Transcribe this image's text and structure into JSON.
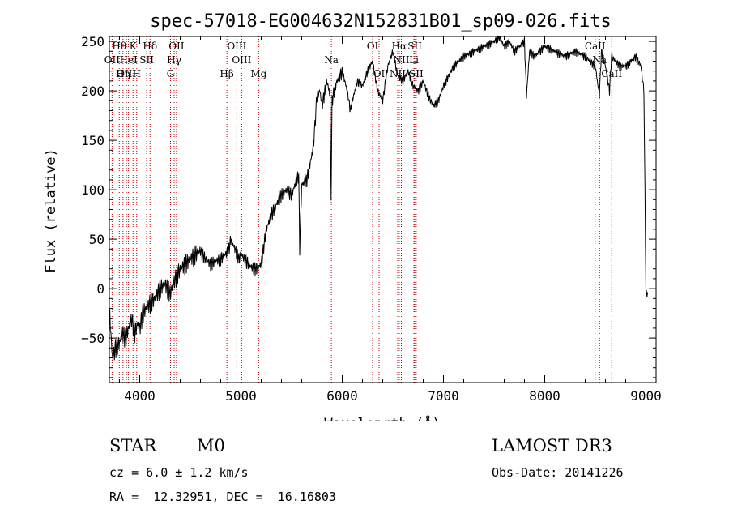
{
  "chart_data": {
    "type": "line",
    "title": "spec-57018-EG004632N152831B01_sp09-026.fits",
    "xlabel": "Wavelength (Å)",
    "ylabel": "Flux (relative)",
    "xlim": [
      3700,
      9100
    ],
    "ylim": [
      -95,
      255
    ],
    "xticks": [
      4000,
      5000,
      6000,
      7000,
      8000,
      9000
    ],
    "yticks": [
      -50,
      0,
      50,
      100,
      150,
      200,
      250
    ],
    "grid": false,
    "series": [
      {
        "x": [
          3700,
          3730,
          3760,
          3800,
          3830,
          3860,
          3890,
          3920,
          3950,
          3980,
          4000,
          4030,
          4060,
          4100,
          4150,
          4200,
          4250,
          4300,
          4350,
          4400,
          4450,
          4500,
          4550,
          4600,
          4650,
          4700,
          4750,
          4800,
          4850,
          4880,
          4900,
          4920,
          4950,
          4980,
          5000,
          5050,
          5100,
          5150,
          5200,
          5250,
          5300,
          5350,
          5400,
          5450,
          5500,
          5550,
          5570,
          5580,
          5600,
          5650,
          5700,
          5720,
          5750,
          5780,
          5800,
          5850,
          5880,
          5890,
          5900,
          5920,
          5950,
          6000,
          6050,
          6080,
          6100,
          6150,
          6200,
          6250,
          6300,
          6350,
          6400,
          6450,
          6500,
          6550,
          6600,
          6650,
          6700,
          6750,
          6800,
          6850,
          6900,
          6950,
          7000,
          7050,
          7100,
          7200,
          7300,
          7400,
          7500,
          7550,
          7600,
          7650,
          7700,
          7750,
          7800,
          7820,
          7850,
          7900,
          8000,
          8100,
          8200,
          8300,
          8400,
          8500,
          8540,
          8560,
          8600,
          8640,
          8660,
          8700,
          8750,
          8800,
          8850,
          8900,
          8950,
          8980,
          9000,
          9020
        ],
        "y": [
          -20,
          -70,
          -60,
          -55,
          -45,
          -50,
          -40,
          -30,
          -45,
          -35,
          -40,
          -25,
          -20,
          -15,
          -10,
          0,
          5,
          -5,
          10,
          20,
          25,
          30,
          35,
          38,
          30,
          25,
          28,
          30,
          35,
          40,
          50,
          45,
          38,
          30,
          35,
          28,
          22,
          20,
          25,
          60,
          75,
          85,
          95,
          100,
          95,
          110,
          115,
          40,
          105,
          110,
          135,
          150,
          195,
          200,
          185,
          210,
          195,
          95,
          190,
          200,
          210,
          220,
          200,
          180,
          190,
          210,
          205,
          220,
          230,
          200,
          190,
          225,
          240,
          215,
          210,
          220,
          205,
          200,
          210,
          195,
          185,
          190,
          205,
          215,
          225,
          235,
          240,
          245,
          250,
          255,
          245,
          250,
          240,
          245,
          250,
          195,
          240,
          235,
          245,
          240,
          235,
          240,
          235,
          225,
          195,
          240,
          225,
          200,
          235,
          230,
          225,
          225,
          230,
          235,
          225,
          200,
          -5,
          -5
        ]
      }
    ],
    "annotations": [
      {
        "label": "Hθ",
        "x": 3798
      },
      {
        "label": "K",
        "x": 3934
      },
      {
        "label": "Hδ",
        "x": 4102
      },
      {
        "label": "OII",
        "x": 4363
      },
      {
        "label": "OIII",
        "x": 4959
      },
      {
        "label": "OI",
        "x": 6300
      },
      {
        "label": "Hα",
        "x": 6563
      },
      {
        "label": "SII",
        "x": 6717
      },
      {
        "label": "CaII",
        "x": 8498
      },
      {
        "label": "OII",
        "x": 3727
      },
      {
        "label": "HeI",
        "x": 3889
      },
      {
        "label": "SII",
        "x": 4069
      },
      {
        "label": "Hγ",
        "x": 4340
      },
      {
        "label": "OIII",
        "x": 5007
      },
      {
        "label": "Na",
        "x": 5893
      },
      {
        "label": "NII",
        "x": 6584
      },
      {
        "label": "Li",
        "x": 6708
      },
      {
        "label": "Na",
        "x": 8542
      },
      {
        "label": "OIII",
        "x": 3869
      },
      {
        "label": "Hη",
        "x": 3835
      },
      {
        "label": "H",
        "x": 3970
      },
      {
        "label": "G",
        "x": 4304
      },
      {
        "label": "Hβ",
        "x": 4861
      },
      {
        "label": "Mg",
        "x": 5175
      },
      {
        "label": "OI",
        "x": 6364
      },
      {
        "label": "NII",
        "x": 6548
      },
      {
        "label": "SII",
        "x": 6731
      },
      {
        "label": "CaII",
        "x": 8662
      }
    ],
    "line_positions": [
      3727,
      3798,
      3835,
      3869,
      3889,
      3934,
      3970,
      4069,
      4102,
      4304,
      4340,
      4363,
      4861,
      4959,
      5007,
      5175,
      5893,
      6300,
      6364,
      6548,
      6563,
      6584,
      6708,
      6717,
      6731,
      8498,
      8542,
      8662
    ]
  },
  "info": {
    "class_label": "STAR",
    "subclass": "M0",
    "survey": "LAMOST DR3",
    "cz_line": "cz = 6.0 ± 1.2 km/s",
    "obs_date": "Obs-Date: 20141226",
    "radec": "RA =  12.32951, DEC =  16.16803"
  }
}
